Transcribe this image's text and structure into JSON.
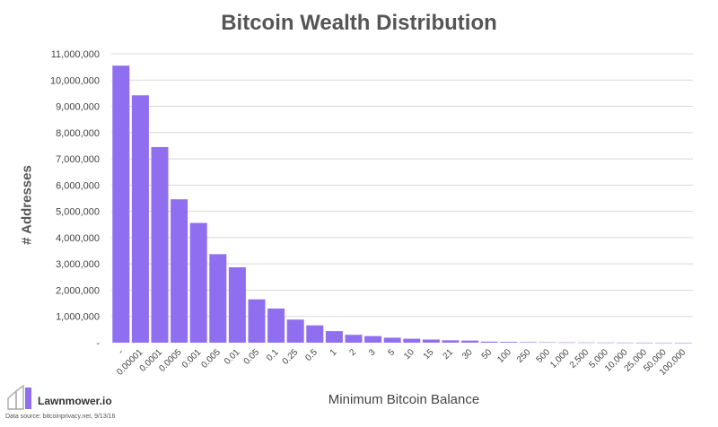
{
  "chart_data": {
    "type": "bar",
    "title": "Bitcoin Wealth Distribution",
    "xlabel": "Minimum Bitcoin Balance",
    "ylabel": "# Addresses",
    "ylim": [
      0,
      11000000
    ],
    "y_ticks": [
      "-",
      "1,000,000",
      "2,000,000",
      "3,000,000",
      "4,000,000",
      "5,000,000",
      "6,000,000",
      "7,000,000",
      "8,000,000",
      "9,000,000",
      "10,000,000",
      "11,000,000"
    ],
    "grid": true,
    "legend": "none",
    "categories": [
      "-",
      "0.00001",
      "0.0001",
      "0.0005",
      "0.001",
      "0.005",
      "0.01",
      "0.05",
      "0.1",
      "0.25",
      "0.5",
      "1",
      "2",
      "3",
      "5",
      "10",
      "15",
      "21",
      "30",
      "50",
      "100",
      "250",
      "500",
      "1,000",
      "2,500",
      "5,000",
      "10,000",
      "25,000",
      "50,000",
      "100,000"
    ],
    "values": [
      10550000,
      9420000,
      7450000,
      5460000,
      4560000,
      3370000,
      2870000,
      1650000,
      1300000,
      880000,
      660000,
      440000,
      300000,
      250000,
      190000,
      150000,
      120000,
      90000,
      80000,
      40000,
      30000,
      20000,
      15000,
      12000,
      9000,
      6000,
      4000,
      2500,
      1500,
      500
    ]
  },
  "colors": {
    "bar": "#8f6ff0",
    "grid": "#d9d9d9",
    "title": "#555555",
    "axis_text": "#444444"
  },
  "branding": {
    "name": "Lawnmower.io",
    "source": "Data source: bitcoinprivacy.net, 9/13/16",
    "logo_icon": "lawnmower-logo"
  }
}
